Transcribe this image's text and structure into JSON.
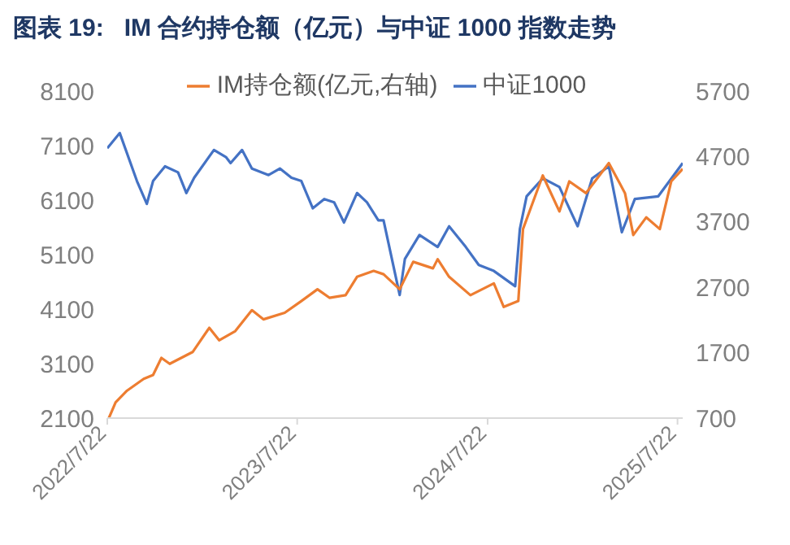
{
  "chart_data": {
    "type": "line",
    "title": "图表 19:   IM 合约持仓额（亿元）与中证 1000 指数走势",
    "series": [
      {
        "name": "中证1000",
        "color": "#4472c4",
        "x": [
          "2022-07-22",
          "2022-08-15",
          "2022-09-17",
          "2022-10-06",
          "2022-10-18",
          "2022-11-10",
          "2022-12-05",
          "2022-12-21",
          "2023-01-05",
          "2023-02-12",
          "2023-03-07",
          "2023-03-16",
          "2023-04-07",
          "2023-04-26",
          "2023-05-28",
          "2023-06-19",
          "2023-07-11",
          "2023-07-30",
          "2023-08-21",
          "2023-09-12",
          "2023-10-01",
          "2023-10-20",
          "2023-11-14",
          "2023-12-03",
          "2023-12-25",
          "2024-01-04",
          "2024-02-04",
          "2024-02-14",
          "2024-03-13",
          "2024-04-17",
          "2024-05-09",
          "2024-06-10",
          "2024-07-05",
          "2024-08-03",
          "2024-09-13",
          "2024-09-22",
          "2024-10-05",
          "2024-11-05",
          "2024-12-07",
          "2025-01-11",
          "2025-02-08",
          "2025-03-12",
          "2025-04-06",
          "2025-05-01",
          "2025-06-15",
          "2025-08-01"
        ],
        "values": [
          7050,
          7330,
          6450,
          6030,
          6450,
          6720,
          6610,
          6230,
          6510,
          7020,
          6890,
          6780,
          7020,
          6680,
          6560,
          6680,
          6510,
          6450,
          5950,
          6120,
          6060,
          5690,
          6230,
          6060,
          5730,
          5730,
          4360,
          5020,
          5460,
          5240,
          5620,
          5240,
          4910,
          4800,
          4520,
          5570,
          6170,
          6500,
          6340,
          5620,
          6500,
          6720,
          5510,
          6120,
          6170,
          6780
        ],
        "axis": "y"
      },
      {
        "name": "IM持仓额(亿元,右轴)",
        "color": "#ed7d31",
        "x": [
          "2022-07-25",
          "2022-08-07",
          "2022-08-29",
          "2022-09-30",
          "2022-10-18",
          "2022-11-03",
          "2022-11-19",
          "2023-01-02",
          "2023-02-03",
          "2023-02-22",
          "2023-03-25",
          "2023-04-26",
          "2023-05-18",
          "2023-06-28",
          "2023-07-30",
          "2023-08-30",
          "2023-09-22",
          "2023-10-23",
          "2023-11-14",
          "2023-12-16",
          "2024-01-04",
          "2024-02-04",
          "2024-03-01",
          "2024-04-08",
          "2024-04-17",
          "2024-05-09",
          "2024-06-19",
          "2024-08-03",
          "2024-08-22",
          "2024-09-19",
          "2024-09-28",
          "2024-11-05",
          "2024-12-07",
          "2024-12-26",
          "2025-01-27",
          "2025-03-12",
          "2025-04-12",
          "2025-04-28",
          "2025-05-23",
          "2025-06-18",
          "2025-07-10",
          "2025-08-01"
        ],
        "values": [
          700,
          940,
          1120,
          1300,
          1360,
          1620,
          1530,
          1710,
          2080,
          1890,
          2030,
          2350,
          2210,
          2310,
          2490,
          2670,
          2540,
          2580,
          2860,
          2950,
          2900,
          2670,
          3090,
          2990,
          3130,
          2860,
          2580,
          2760,
          2400,
          2490,
          3590,
          4410,
          3860,
          4320,
          4140,
          4600,
          4140,
          3500,
          3770,
          3590,
          4320,
          4510
        ],
        "axis": "y2"
      }
    ],
    "xlim": [
      "2022-07-22",
      "2025-08-01"
    ],
    "xticks": [
      {
        "value": "2022-07-22",
        "label": "2022/7/22"
      },
      {
        "value": "2023-07-22",
        "label": "2023/7/22"
      },
      {
        "value": "2024-07-22",
        "label": "2024/7/22"
      },
      {
        "value": "2025-07-22",
        "label": "2025/7/22"
      }
    ],
    "ylim": [
      2100,
      8100
    ],
    "yticks": [
      2100,
      3100,
      4100,
      5100,
      6100,
      7100,
      8100
    ],
    "y2lim": [
      700,
      5700
    ],
    "y2ticks": [
      700,
      1700,
      2700,
      3700,
      4700,
      5700
    ],
    "legend": "top",
    "grid": false,
    "marker": "none",
    "line_style": "solid"
  }
}
